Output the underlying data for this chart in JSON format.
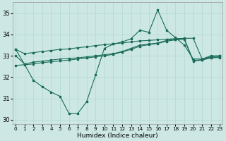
{
  "background_color": "#cde8e4",
  "grid_color": "#b0d8d0",
  "line_color": "#1a6b5a",
  "xlabel": "Humidex (Indice chaleur)",
  "ylim": [
    29.8,
    35.5
  ],
  "xlim": [
    -0.3,
    23.3
  ],
  "yticks": [
    30,
    31,
    32,
    33,
    34,
    35
  ],
  "xticks": [
    0,
    1,
    2,
    3,
    4,
    5,
    6,
    7,
    8,
    9,
    10,
    11,
    12,
    13,
    14,
    15,
    16,
    17,
    18,
    19,
    20,
    21,
    22,
    23
  ],
  "line_spike_x": [
    0,
    1,
    2,
    3,
    4,
    5,
    6,
    7,
    8,
    9,
    10,
    11,
    12,
    13,
    14,
    15,
    16,
    17,
    18,
    19,
    20,
    21,
    22,
    23
  ],
  "line_spike_y": [
    33.3,
    32.6,
    31.85,
    31.55,
    31.3,
    31.1,
    30.3,
    30.3,
    30.85,
    32.1,
    33.35,
    33.55,
    33.65,
    33.8,
    34.2,
    34.1,
    35.15,
    34.2,
    33.85,
    33.5,
    32.85,
    32.85,
    33.0,
    33.0
  ],
  "line_upper_x": [
    0,
    1,
    2,
    3,
    4,
    5,
    6,
    7,
    8,
    9,
    10,
    11,
    12,
    13,
    14,
    15,
    16,
    17,
    18,
    19,
    20,
    21,
    22,
    23
  ],
  "line_upper_y": [
    33.3,
    33.1,
    33.15,
    33.2,
    33.25,
    33.3,
    33.32,
    33.38,
    33.42,
    33.48,
    33.52,
    33.56,
    33.6,
    33.65,
    33.7,
    33.72,
    33.75,
    33.78,
    33.8,
    33.82,
    33.82,
    32.85,
    32.95,
    33.0
  ],
  "line_mid_x": [
    0,
    1,
    2,
    3,
    4,
    5,
    6,
    7,
    8,
    9,
    10,
    11,
    12,
    13,
    14,
    15,
    16,
    17,
    18,
    19,
    20,
    21,
    22,
    23
  ],
  "line_mid_y": [
    33.0,
    32.62,
    32.7,
    32.75,
    32.8,
    32.85,
    32.88,
    32.9,
    32.95,
    33.0,
    33.05,
    33.1,
    33.2,
    33.35,
    33.5,
    33.55,
    33.6,
    33.72,
    33.78,
    33.8,
    32.78,
    32.82,
    32.92,
    32.95
  ],
  "line_lower_x": [
    0,
    1,
    2,
    3,
    4,
    5,
    6,
    7,
    8,
    9,
    10,
    11,
    12,
    13,
    14,
    15,
    16,
    17,
    18,
    19,
    20,
    21,
    22,
    23
  ],
  "line_lower_y": [
    32.55,
    32.58,
    32.62,
    32.68,
    32.72,
    32.76,
    32.8,
    32.85,
    32.9,
    32.95,
    33.0,
    33.07,
    33.18,
    33.3,
    33.45,
    33.52,
    33.58,
    33.68,
    33.75,
    33.78,
    32.75,
    32.8,
    32.9,
    32.92
  ]
}
